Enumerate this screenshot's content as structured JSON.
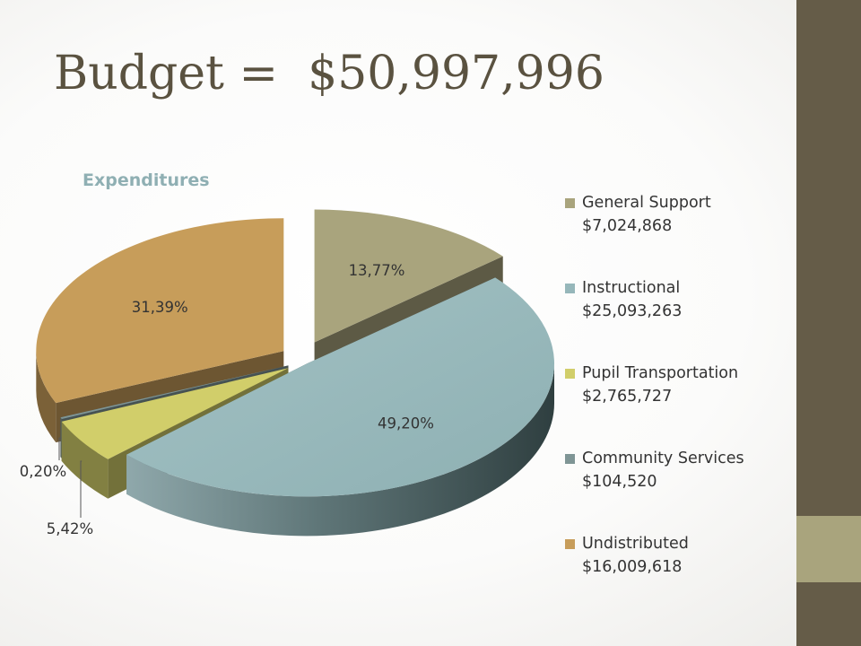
{
  "slide": {
    "title": "Budget =  $50,997,996"
  },
  "colors": {
    "sidebar": "#655c48",
    "sidebar_accent": "#a9a47d",
    "general_support": "#a9a47d",
    "instructional": "#96b7ba",
    "pupil_transportation": "#d1ce6a",
    "community_services": "#7f9595",
    "undistributed": "#c79d5a"
  },
  "chart_data": {
    "type": "pie",
    "title": "Expenditures",
    "legend_position": "right",
    "slices": [
      {
        "name": "General Support",
        "amount": "$7,024,868",
        "value": 7024868,
        "percent": 13.77,
        "label": "13,77%"
      },
      {
        "name": "Instructional",
        "amount": "$25,093,263",
        "value": 25093263,
        "percent": 49.2,
        "label": "49,20%"
      },
      {
        "name": "Pupil Transportation",
        "amount": "$2,765,727",
        "value": 2765727,
        "percent": 5.42,
        "label": "5,42%"
      },
      {
        "name": "Community Services",
        "amount": "$104,520",
        "value": 104520,
        "percent": 0.2,
        "label": "0,20%"
      },
      {
        "name": "Undistributed",
        "amount": "$16,009,618",
        "value": 16009618,
        "percent": 31.39,
        "label": "31,39%"
      }
    ]
  }
}
